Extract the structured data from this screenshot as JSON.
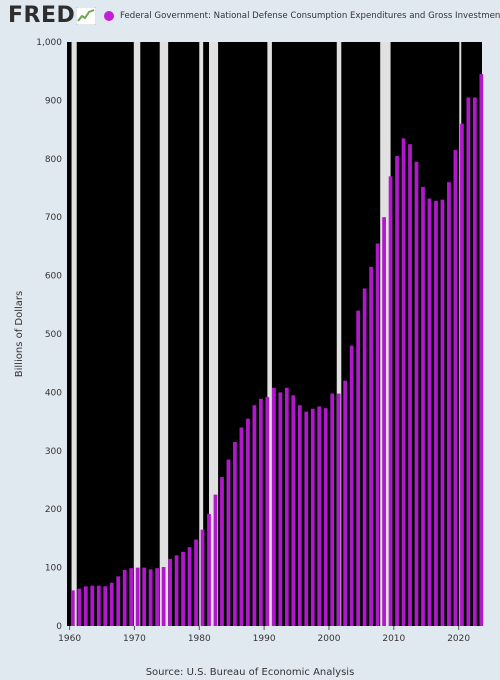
{
  "header": {
    "logo_text": "FRED",
    "series_label": "Federal Government: National Defense Consumption Expenditures and Gross Investment"
  },
  "colors": {
    "page_background": "#e1e9f0",
    "plot_background": "#000000",
    "bar": "#b019c9",
    "recession": "#e1e1e1",
    "logo_accent": "#6aa84f",
    "legend_dot": "#c21fd6"
  },
  "footer": {
    "source": "Source: U.S. Bureau of Economic Analysis"
  },
  "chart_data": {
    "type": "bar",
    "ylabel": "Billions of Dollars",
    "xlabel": "",
    "ylim": [
      0,
      1000
    ],
    "xlim": [
      1959.6,
      2023.6
    ],
    "grid": false,
    "legend_placement": "top",
    "y_ticks": [
      "0",
      "100",
      "200",
      "300",
      "400",
      "500",
      "600",
      "700",
      "800",
      "900",
      "1,000"
    ],
    "x_ticks": [
      "1960",
      "1970",
      "1980",
      "1990",
      "2000",
      "2010",
      "2020"
    ],
    "recessions": [
      {
        "start": 1960.3,
        "end": 1961.1
      },
      {
        "start": 1969.9,
        "end": 1970.9
      },
      {
        "start": 1973.9,
        "end": 1975.2
      },
      {
        "start": 1980.0,
        "end": 1980.6
      },
      {
        "start": 1981.5,
        "end": 1982.9
      },
      {
        "start": 1990.5,
        "end": 1991.2
      },
      {
        "start": 2001.2,
        "end": 2001.9
      },
      {
        "start": 2007.9,
        "end": 2009.5
      },
      {
        "start": 2020.1,
        "end": 2020.4
      }
    ],
    "x": [
      1960,
      1961,
      1962,
      1963,
      1964,
      1965,
      1966,
      1967,
      1968,
      1969,
      1970,
      1971,
      1972,
      1973,
      1974,
      1975,
      1976,
      1977,
      1978,
      1979,
      1980,
      1981,
      1982,
      1983,
      1984,
      1985,
      1986,
      1987,
      1988,
      1989,
      1990,
      1991,
      1992,
      1993,
      1994,
      1995,
      1996,
      1997,
      1998,
      1999,
      2000,
      2001,
      2002,
      2003,
      2004,
      2005,
      2006,
      2007,
      2008,
      2009,
      2010,
      2011,
      2012,
      2013,
      2014,
      2015,
      2016,
      2017,
      2018,
      2019,
      2020,
      2021,
      2022,
      2023
    ],
    "series": [
      {
        "values": [
          61,
          64,
          68,
          69,
          69,
          68,
          74,
          85,
          96,
          99,
          100,
          100,
          97,
          99,
          101,
          115,
          121,
          127,
          135,
          148,
          165,
          192,
          225,
          255,
          285,
          315,
          340,
          355,
          378,
          389,
          392,
          408,
          400,
          408,
          395,
          378,
          367,
          372,
          376,
          373,
          398,
          398,
          420,
          480,
          540,
          578,
          615,
          655,
          700,
          770,
          805,
          835,
          825,
          795,
          752,
          732,
          728,
          730,
          760,
          815,
          860,
          905,
          905,
          945
        ]
      }
    ]
  }
}
